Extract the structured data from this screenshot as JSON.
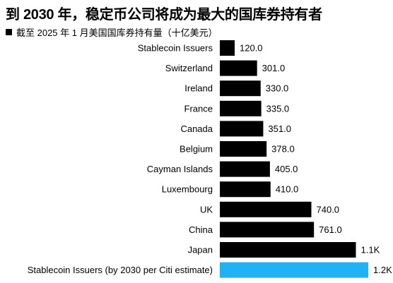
{
  "header": {
    "title": "到 2030 年，稳定币公司将成为最大的国库券持有者",
    "subtitle": "截至 2025 年 1 月美国国库券持有量（十亿美元）"
  },
  "colors": {
    "default_bar": "#000000",
    "highlight_bar": "#1fb2f5"
  },
  "chart_data": {
    "type": "bar",
    "orientation": "horizontal",
    "title": "到 2030 年，稳定币公司将成为最大的国库券持有者",
    "subtitle": "截至 2025 年 1 月美国国库券持有量（十亿美元）",
    "categories": [
      "Stablecoin Issuers",
      "Switzerland",
      "Ireland",
      "France",
      "Canada",
      "Belgium",
      "Cayman Islands",
      "Luxembourg",
      "UK",
      "China",
      "Japan",
      "Stablecoin Issuers (by 2030 per Citi estimate)"
    ],
    "values": [
      120.0,
      301.0,
      330.0,
      335.0,
      351.0,
      378.0,
      405.0,
      410.0,
      740.0,
      761.0,
      1100,
      1200
    ],
    "value_labels": [
      "120.0",
      "301.0",
      "330.0",
      "335.0",
      "351.0",
      "378.0",
      "405.0",
      "410.0",
      "740.0",
      "761.0",
      "1.1K",
      "1.2K"
    ],
    "highlighted": [
      false,
      false,
      false,
      false,
      false,
      false,
      false,
      false,
      false,
      false,
      false,
      true
    ],
    "xlim": [
      0,
      1200
    ],
    "grid": false,
    "legend": "none"
  }
}
